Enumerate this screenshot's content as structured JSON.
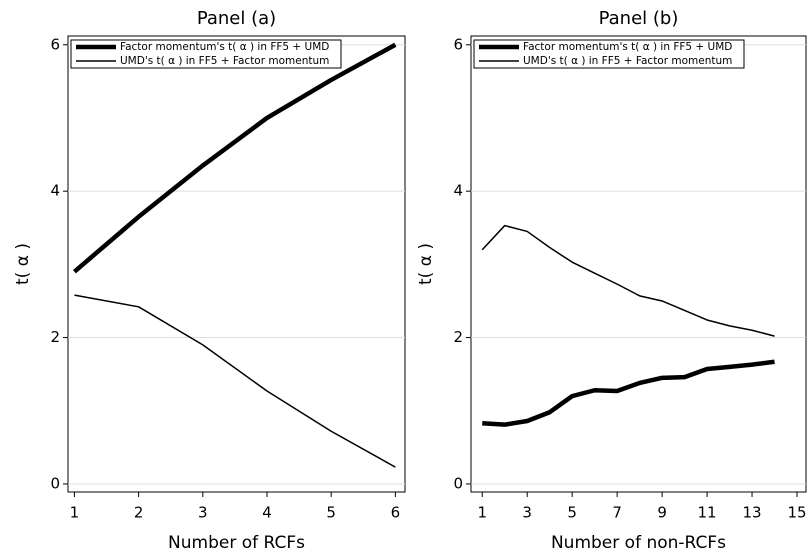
{
  "chart_data": [
    {
      "type": "line",
      "title": "Panel (a)",
      "x_label": "Number of RCFs",
      "y_label": "t( α )",
      "x": [
        1,
        2,
        3,
        4,
        5,
        6
      ],
      "series": [
        {
          "name": "Factor momentum's t( α ) in FF5 + UMD",
          "color": "#000000",
          "values": [
            2.9,
            3.65,
            4.35,
            5.0,
            5.52,
            6.0
          ]
        },
        {
          "name": "UMD's t( α ) in FF5 + Factor momentum",
          "color": "#000000",
          "values": [
            2.58,
            2.42,
            1.9,
            1.27,
            0.72,
            0.23
          ]
        }
      ],
      "xlim": [
        0.9,
        6.15
      ],
      "xticks": [
        1,
        2,
        3,
        4,
        5,
        6
      ],
      "ylim": [
        -0.11,
        6.12
      ],
      "yticks": [
        0,
        2,
        4,
        6
      ],
      "grid": true
    },
    {
      "type": "line",
      "title": "Panel (b)",
      "x_label": "Number of non-RCFs",
      "y_label": "t( α )",
      "x": [
        1,
        2,
        3,
        4,
        5,
        6,
        7,
        8,
        9,
        10,
        11,
        12,
        13,
        14
      ],
      "series": [
        {
          "name": "Factor momentum's t( α ) in FF5 + UMD",
          "color": "#000000",
          "values": [
            0.83,
            0.81,
            0.86,
            0.98,
            1.2,
            1.28,
            1.27,
            1.38,
            1.45,
            1.46,
            1.57,
            1.6,
            1.63,
            1.67
          ]
        },
        {
          "name": "UMD's t( α ) in FF5 + Factor momentum",
          "color": "#000000",
          "values": [
            3.2,
            3.53,
            3.45,
            3.23,
            3.03,
            2.88,
            2.73,
            2.57,
            2.5,
            2.37,
            2.24,
            2.16,
            2.1,
            2.02
          ]
        }
      ],
      "xlim": [
        0.5,
        15.4
      ],
      "xticks": [
        1,
        3,
        5,
        7,
        9,
        11,
        13,
        15
      ],
      "ylim": [
        -0.11,
        6.12
      ],
      "yticks": [
        0,
        2,
        4,
        6
      ],
      "grid": true
    }
  ]
}
